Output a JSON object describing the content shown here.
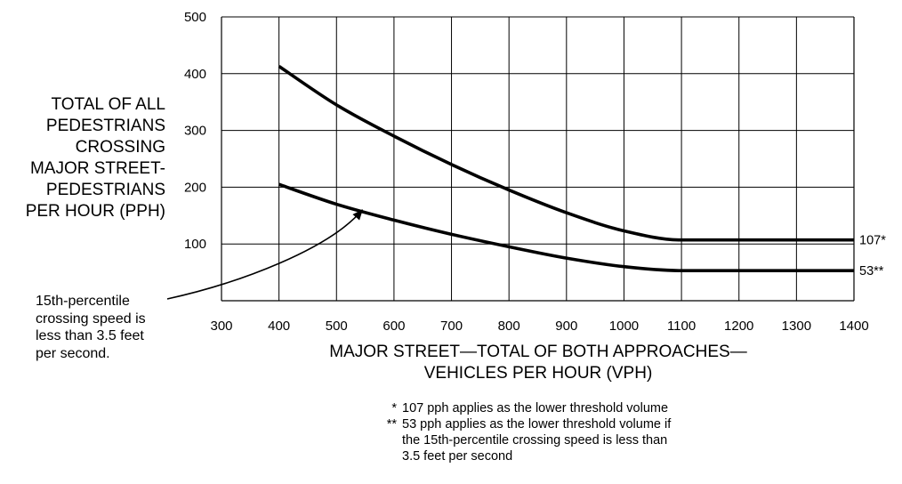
{
  "chart_data": {
    "type": "line",
    "title": "",
    "xlabel": "MAJOR STREET—TOTAL OF BOTH APPROACHES—\nVEHICLES PER HOUR (VPH)",
    "ylabel": "TOTAL OF ALL\nPEDESTRIANS\nCROSSING\nMAJOR STREET-\nPEDESTRIANS\nPER HOUR (PPH)",
    "xlim": [
      300,
      1400
    ],
    "ylim": [
      0,
      500
    ],
    "xticks": [
      "300",
      "400",
      "500",
      "600",
      "700",
      "800",
      "900",
      "1000",
      "1100",
      "1200",
      "1300",
      "1400"
    ],
    "yticks": [
      "100",
      "200",
      "300",
      "400",
      "500"
    ],
    "grid": true,
    "series": [
      {
        "end_label": "107*",
        "x": [
          400,
          500,
          600,
          700,
          800,
          900,
          1000,
          1100,
          1200,
          1300,
          1400
        ],
        "y": [
          413,
          345,
          290,
          240,
          195,
          155,
          123,
          107,
          107,
          107,
          107
        ]
      },
      {
        "end_label": "53**",
        "x": [
          400,
          500,
          600,
          700,
          800,
          900,
          1000,
          1100,
          1200,
          1300,
          1400
        ],
        "y": [
          205,
          170,
          142,
          117,
          95,
          75,
          60,
          53,
          53,
          53,
          53
        ]
      }
    ],
    "annotation": {
      "text": "15th-percentile\ncrossing speed is\nless than 3.5 feet\nper second.",
      "points_to": {
        "x": 545,
        "y": 160
      }
    },
    "footnotes": [
      {
        "mark": "*",
        "text": "107 pph applies as the lower threshold volume"
      },
      {
        "mark": "**",
        "text": "53 pph applies as the lower threshold volume if\nthe 15th-percentile crossing speed is less than\n3.5 feet per second"
      }
    ]
  }
}
